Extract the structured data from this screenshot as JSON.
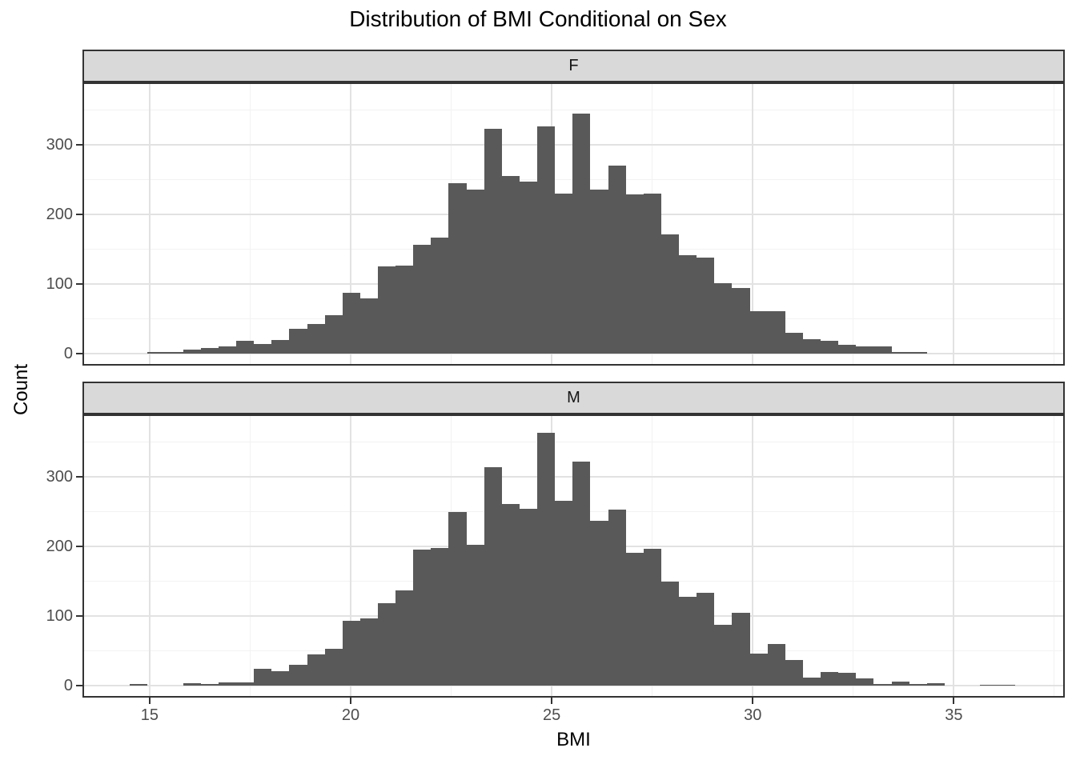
{
  "chart_data": {
    "type": "bar",
    "subtype": "faceted-histogram",
    "title": "Distribution of BMI Conditional on Sex",
    "xlabel": "BMI",
    "ylabel": "Count",
    "legend": "none",
    "grid": "on",
    "bins": {
      "start": 14.51,
      "width": 0.4405
    },
    "x_axis": {
      "range": [
        13.37,
        37.72
      ],
      "ticks": [
        {
          "value": 15,
          "label": "15"
        },
        {
          "value": 20,
          "label": "20"
        },
        {
          "value": 25,
          "label": "25"
        },
        {
          "value": 30,
          "label": "30"
        },
        {
          "value": 35,
          "label": "35"
        }
      ],
      "minor_ticks": [
        17.5,
        22.5,
        27.5,
        32.5,
        37.5
      ]
    },
    "y_axis": {
      "range": [
        -14.8,
        387.5
      ],
      "ticks": [
        {
          "value": 0,
          "label": "0"
        },
        {
          "value": 100,
          "label": "100"
        },
        {
          "value": 200,
          "label": "200"
        },
        {
          "value": 300,
          "label": "300"
        }
      ],
      "minor_ticks": [
        50,
        150,
        250,
        350
      ]
    },
    "facets": [
      {
        "label": "F",
        "counts": [
          0,
          2,
          2,
          6,
          8,
          10,
          18,
          14,
          20,
          36,
          43,
          55,
          87,
          79,
          125,
          127,
          157,
          167,
          245,
          236,
          323,
          255,
          247,
          327,
          230,
          345,
          236,
          270,
          229,
          230,
          171,
          141,
          138,
          101,
          94,
          61,
          61,
          30,
          21,
          18,
          13,
          10,
          11,
          3,
          3,
          0,
          0,
          0,
          0,
          0
        ]
      },
      {
        "label": "M",
        "counts": [
          2,
          0,
          0,
          4,
          2,
          5,
          5,
          24,
          21,
          30,
          45,
          53,
          93,
          97,
          119,
          137,
          196,
          198,
          249,
          202,
          314,
          261,
          254,
          363,
          266,
          322,
          237,
          253,
          191,
          197,
          150,
          128,
          134,
          87,
          105,
          46,
          60,
          37,
          12,
          20,
          19,
          11,
          3,
          6,
          2,
          4,
          0,
          0,
          1,
          1
        ]
      }
    ],
    "colors": {
      "bar": "#595959",
      "strip_background": "#d9d9d9",
      "panel_border": "#333333",
      "grid_major": "#e2e2e2",
      "grid_minor": "#f2f2f2",
      "tick_mark": "#333333",
      "tick_label": "#4d4d4d",
      "title": "#000000"
    }
  }
}
